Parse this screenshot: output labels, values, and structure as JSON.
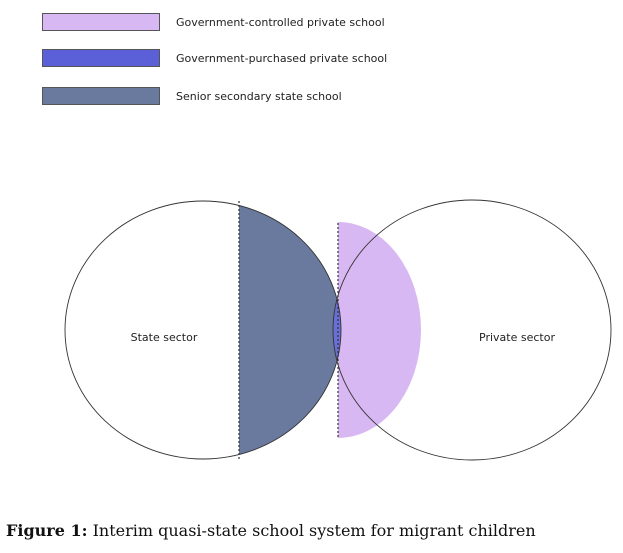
{
  "legend": {
    "items": [
      {
        "label": "Government-controlled private school",
        "color": "#d8b8f2"
      },
      {
        "label": "Government-purchased private school",
        "color": "#5b5fd8"
      },
      {
        "label": "Senior secondary state school",
        "color": "#6a7a9e"
      }
    ]
  },
  "venn": {
    "left_label": "State sector",
    "right_label": "Private sector",
    "colors": {
      "government_controlled_private": "#d8b8f2",
      "government_purchased_private": "#6a6fd6",
      "senior_secondary_state": "#6a7a9e",
      "outline": "#333333"
    }
  },
  "caption": {
    "prefix": "Figure 1:",
    "text": " Interim quasi-state school system for migrant children"
  }
}
